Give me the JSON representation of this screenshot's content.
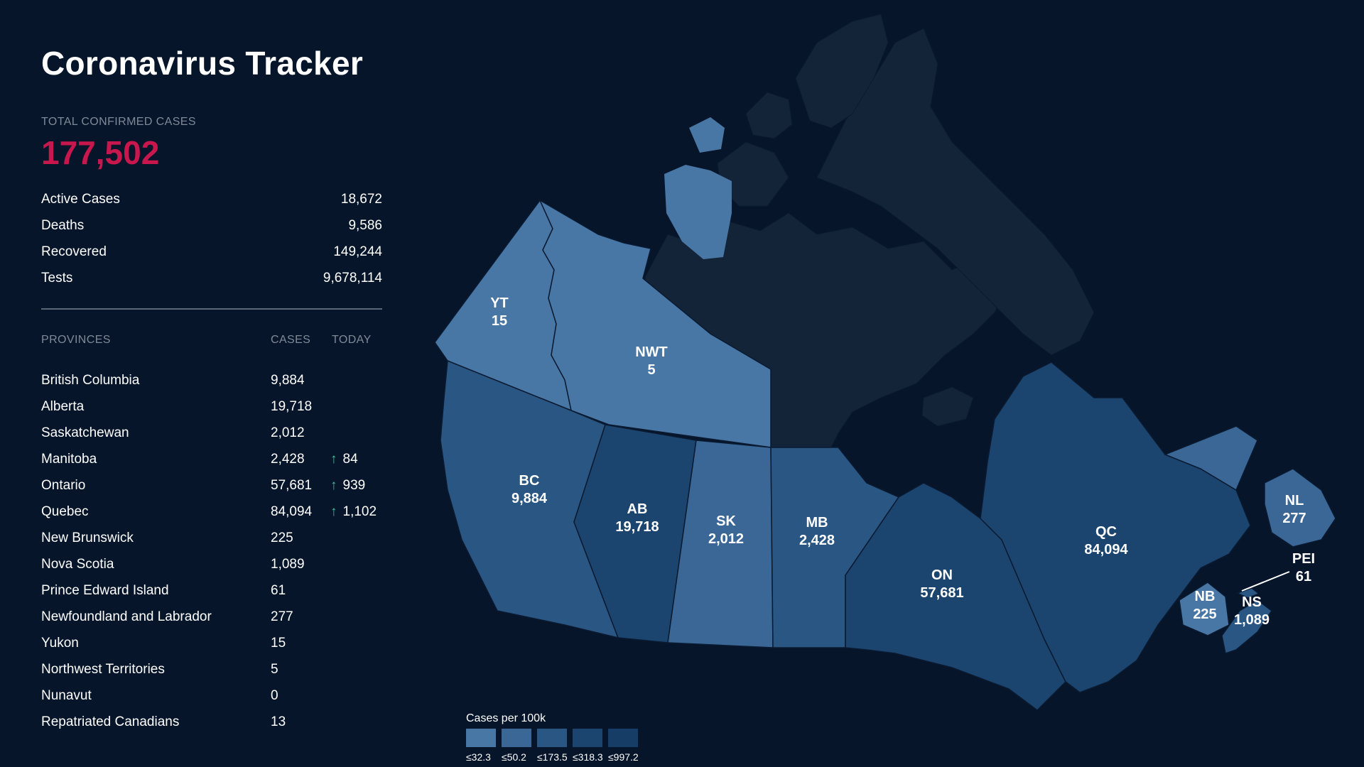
{
  "header": {
    "title": "Coronavirus Tracker",
    "total_label": "TOTAL CONFIRMED CASES",
    "total_value": "177,502"
  },
  "stats": [
    {
      "label": "Active Cases",
      "value": "18,672"
    },
    {
      "label": "Deaths",
      "value": "9,586"
    },
    {
      "label": "Recovered",
      "value": "149,244"
    },
    {
      "label": "Tests",
      "value": "9,678,114"
    }
  ],
  "provinces_table": {
    "headers": {
      "name": "PROVINCES",
      "cases": "CASES",
      "today": "TODAY"
    },
    "rows": [
      {
        "name": "British Columbia",
        "cases": "9,884",
        "today": ""
      },
      {
        "name": "Alberta",
        "cases": "19,718",
        "today": ""
      },
      {
        "name": "Saskatchewan",
        "cases": "2,012",
        "today": ""
      },
      {
        "name": "Manitoba",
        "cases": "2,428",
        "today": "84"
      },
      {
        "name": "Ontario",
        "cases": "57,681",
        "today": "939"
      },
      {
        "name": "Quebec",
        "cases": "84,094",
        "today": "1,102"
      },
      {
        "name": "New Brunswick",
        "cases": "225",
        "today": ""
      },
      {
        "name": "Nova Scotia",
        "cases": "1,089",
        "today": ""
      },
      {
        "name": "Prince Edward Island",
        "cases": "61",
        "today": ""
      },
      {
        "name": "Newfoundland and Labrador",
        "cases": "277",
        "today": ""
      },
      {
        "name": "Yukon",
        "cases": "15",
        "today": ""
      },
      {
        "name": "Northwest Territories",
        "cases": "5",
        "today": ""
      },
      {
        "name": "Nunavut",
        "cases": "0",
        "today": ""
      },
      {
        "name": "Repatriated Canadians",
        "cases": "13",
        "today": ""
      }
    ],
    "today_icon": "arrow-up-icon"
  },
  "map": {
    "regions": [
      {
        "abbr": "YT",
        "value": "15",
        "color": "#4876a5"
      },
      {
        "abbr": "NWT",
        "value": "5",
        "color": "#4876a5"
      },
      {
        "abbr": "BC",
        "value": "9,884",
        "color": "#2a5683"
      },
      {
        "abbr": "AB",
        "value": "19,718",
        "color": "#1b446f"
      },
      {
        "abbr": "SK",
        "value": "2,012",
        "color": "#3a6796"
      },
      {
        "abbr": "MB",
        "value": "2,428",
        "color": "#2a5683"
      },
      {
        "abbr": "ON",
        "value": "57,681",
        "color": "#1b446f"
      },
      {
        "abbr": "QC",
        "value": "84,094",
        "color": "#1b446f"
      },
      {
        "abbr": "NL",
        "value": "277",
        "color": "#3a6796"
      },
      {
        "abbr": "PEI",
        "value": "61",
        "color": "#2a5683"
      },
      {
        "abbr": "NB",
        "value": "225",
        "color": "#4876a5"
      },
      {
        "abbr": "NS",
        "value": "1,089",
        "color": "#2a5683"
      }
    ],
    "nunavut_color": "#142438",
    "water_color": "#06152a"
  },
  "legend": {
    "title": "Cases per 100k",
    "items": [
      {
        "label": "≤32.3",
        "color": "#4876a5"
      },
      {
        "label": "≤50.2",
        "color": "#3a6796"
      },
      {
        "label": "≤173.5",
        "color": "#2a5683"
      },
      {
        "label": "≤318.3",
        "color": "#1b446f"
      },
      {
        "label": "≤997.2",
        "color": "#163d66"
      }
    ]
  }
}
